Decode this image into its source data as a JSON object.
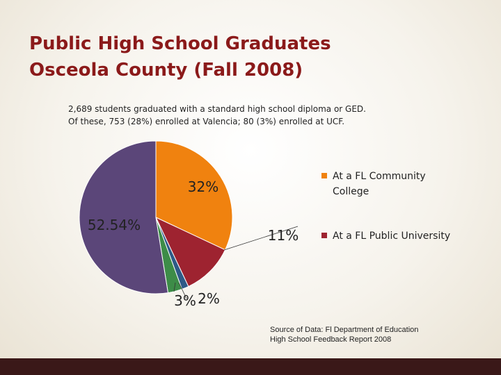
{
  "slide": {
    "title_line1": "Public High School Graduates",
    "title_line2": "Osceola County (Fall 2008)",
    "subtitle_line1": "2,689 students graduated with a standard high school diploma or GED.",
    "subtitle_line2": "Of these, 753 (28%) enrolled at Valencia; 80 (3%) enrolled at UCF.",
    "source_line1": "Source of Data: Fl Department of Education",
    "source_line2": "High School Feedback Report 2008"
  },
  "chart_data": {
    "type": "pie",
    "title": "",
    "slices": [
      {
        "name": "At a FL Community College",
        "value": 32,
        "label": "32%",
        "color": "#f0820f"
      },
      {
        "name": "At a FL Public University",
        "value": 11,
        "label": "11%",
        "color": "#9e2330"
      },
      {
        "name": "",
        "value": 1.46,
        "label": "",
        "color": "#2e5a87"
      },
      {
        "name": "",
        "value": 3,
        "label": "3%",
        "color": "#3d8c48"
      },
      {
        "name": "",
        "value": 52.54,
        "label": "52.54%",
        "color": "#5b4679"
      }
    ],
    "extra_labels": [
      "2%"
    ],
    "legend": [
      {
        "label": "At a FL Community College",
        "color": "#f0820f"
      },
      {
        "label": "At a FL Public University",
        "color": "#9e2330"
      }
    ],
    "legend_position": "right"
  }
}
